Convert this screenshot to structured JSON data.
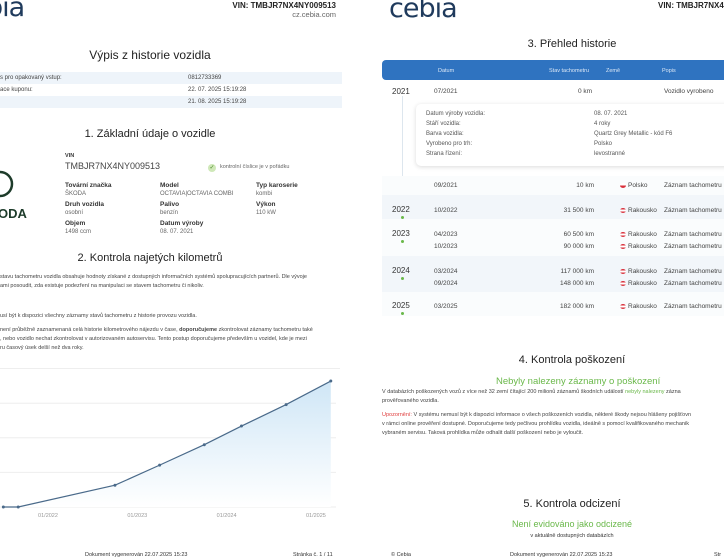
{
  "header": {
    "logo": "cebia",
    "vin": "VIN: TMBJR7NX4NY009513",
    "site": "cz.cebia.com"
  },
  "left": {
    "title": "Výpis z historie vozidla",
    "info_rows": [
      {
        "label": "s pro opakovaný vstup:",
        "value": "0812733369"
      },
      {
        "label": "ace kuponu:",
        "value": "22. 07. 2025 15:19:28"
      },
      {
        "label": "",
        "value": "21. 08. 2025 15:19:28"
      }
    ],
    "section1": "1. Základní údaje o vozidle",
    "brand_logo": "ODA",
    "vin_label": "VIN",
    "vin_value": "TMBJR7NX4NY009513",
    "vin_check": "kontrolní číslice je v pořádku",
    "fields": [
      {
        "label": "Tovární značka",
        "value": "ŠKODA"
      },
      {
        "label": "Model",
        "value": "OCTAVIA|OCTAVIA COMBI"
      },
      {
        "label": "Typ karoserie",
        "value": "kombi"
      },
      {
        "label": "Druh vozidla",
        "value": "osobní"
      },
      {
        "label": "Palivo",
        "value": "benzín"
      },
      {
        "label": "Výkon",
        "value": "110 kW"
      },
      {
        "label": "Objem",
        "value": "1498 ccm"
      },
      {
        "label": "Datum výroby",
        "value": "08. 07. 2021"
      }
    ],
    "section2": "2. Kontrola najetých kilometrů",
    "p1a": "stavu tachometru vozidla obsahuje hodnoty získané z dostupných informačních systémů spolupracujících partnerů. Dle vývoje",
    "p1b": "ami posoudit, zda existuje podezření na manipulaci se stavem tachometru či nikoliv.",
    "p2": "usí být k dispozici všechny záznamy stavů tachometru z historie provozu vozidla.",
    "p3a_1": " není průběžně zaznamenaná celá historie kilometrového nájezdu v čase, ",
    "p3a_bold": "doporučujeme",
    "p3a_2": " zkontrolovat záznamy tachometru také",
    "p3b": ", nebo vozidlo nechat zkontrolovat v autorizovaném autoservisu. Tento postup doporučujeme především u vozidel, kde je mezi",
    "p3c": "ru časový úsek delší než dva roky.",
    "footer_generated": "Dokument vygenerován 22.07.2025 15:23",
    "footer_page": "Stránka č. 1 / 11"
  },
  "chart_data": {
    "type": "area",
    "xlabel": "",
    "ylabel": "",
    "x_ticks": [
      "01/2022",
      "01/2023",
      "01/2024",
      "01/2025"
    ],
    "points": [
      {
        "x": "07/2021",
        "y": 0
      },
      {
        "x": "09/2021",
        "y": 10
      },
      {
        "x": "10/2022",
        "y": 31500
      },
      {
        "x": "04/2023",
        "y": 60500
      },
      {
        "x": "10/2023",
        "y": 90000
      },
      {
        "x": "03/2024",
        "y": 117000
      },
      {
        "x": "09/2024",
        "y": 148000
      },
      {
        "x": "03/2025",
        "y": 182000
      }
    ],
    "grid": true,
    "line_color": "#4a6a8a",
    "fill_color": "#cfe6f6"
  },
  "right": {
    "section3": "3. Přehled historie",
    "columns": [
      "Datum",
      "Stav tachometru",
      "Země",
      "Popis"
    ],
    "first": {
      "year": "2021",
      "date": "07/2021",
      "km": "0 km",
      "desc": "Vozidlo vyrobeno"
    },
    "details": [
      {
        "label": "Datum výroby vozidla:",
        "value": "08. 07. 2021"
      },
      {
        "label": "Stáří vozidla:",
        "value": "4 roky"
      },
      {
        "label": "Barva vozidla:",
        "value": "Quartz Grey Metallic - kód F6"
      },
      {
        "label": "Vyrobeno pro trh:",
        "value": "Polsko"
      },
      {
        "label": "Strana řízení:",
        "value": "levostranné"
      }
    ],
    "rows": [
      {
        "year": "",
        "date": "09/2021",
        "km": "10 km",
        "country": "Polsko",
        "desc": "Záznam tachometru"
      },
      {
        "year": "2022",
        "date": "10/2022",
        "km": "31 500 km",
        "country": "Rakousko",
        "desc": "Záznam tachometru"
      },
      {
        "year": "2023",
        "date": "04/2023",
        "km": "60 500 km",
        "country": "Rakousko",
        "desc": "Záznam tachometru"
      },
      {
        "year": "",
        "date": "10/2023",
        "km": "90 000 km",
        "country": "Rakousko",
        "desc": "Záznam tachometru"
      },
      {
        "year": "2024",
        "date": "03/2024",
        "km": "117 000 km",
        "country": "Rakousko",
        "desc": "Záznam tachometru"
      },
      {
        "year": "",
        "date": "09/2024",
        "km": "148 000 km",
        "country": "Rakousko",
        "desc": "Záznam tachometru"
      },
      {
        "year": "2025",
        "date": "03/2025",
        "km": "182 000 km",
        "country": "Rakousko",
        "desc": "Záznam tachometru"
      }
    ],
    "section4": "4. Kontrola poškození",
    "damage_result": "Nebyly nalezeny záznamy o poškození",
    "d1a": "V databázích poškozených vozů z více než 32 zemí čítající 200 milionů záznamů škodních událostí ",
    "d1g": "nebyly nalezeny",
    "d1b": " zázna",
    "d1c": "prověřovaného vozidla.",
    "warn_label": "Upozornění:",
    "w1": " V systému nemusí být k dispozici informace o všech poškozeních vozidla, některé škody nejsou hlášeny pojišťovn",
    "w2": "v rámci online prověření dostupné. Doporučujeme tedy pečlivou prohlídku vozidla, ideálně s pomocí kvalifikovaného mechanik",
    "w3": "vybraném servisu. Taková prohlídka může odhalit další poškození nebo je vyloučit.",
    "section5": "5. Kontrola odcizení",
    "theft_result": "Není evidováno jako odcizené",
    "theft_sub": "v aktuálně dostupných databázích",
    "footer_copy": "© Cebia",
    "footer_generated": "Dokument vygenerován 22.07.2025 15:23",
    "footer_page": "Str"
  }
}
